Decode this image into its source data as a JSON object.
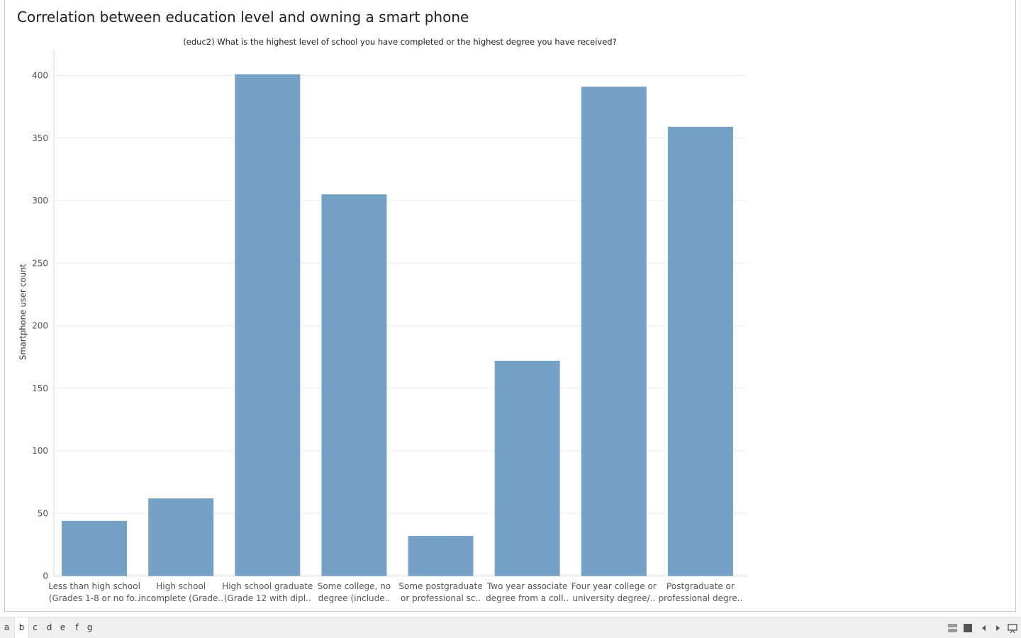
{
  "chart_data": {
    "type": "bar",
    "title": "Correlation between education level and owning a smart phone",
    "subtitle": "(educ2) What is the highest level of school you have completed or the highest degree you have received?",
    "xlabel": "",
    "ylabel": "Smartphone user count",
    "ylim": [
      0,
      400
    ],
    "yticks": [
      0,
      50,
      100,
      150,
      200,
      250,
      300,
      350,
      400
    ],
    "grid": true,
    "bar_color": "#75a1c7",
    "categories": [
      [
        "Less than high school",
        "(Grades 1-8 or no fo.."
      ],
      [
        "High school",
        "incomplete (Grade.."
      ],
      [
        "High school graduate",
        "(Grade 12 with dipl.."
      ],
      [
        "Some college, no",
        "degree (include.."
      ],
      [
        "Some postgraduate",
        "or professional sc.."
      ],
      [
        "Two year associate",
        "degree from a coll.."
      ],
      [
        "Four year college or",
        "university degree/.."
      ],
      [
        "Postgraduate or",
        "professional degre.."
      ]
    ],
    "values": [
      44,
      62,
      401,
      305,
      32,
      172,
      391,
      359
    ]
  },
  "tabs": [
    "a",
    "b",
    "c",
    "d",
    "e",
    "f",
    "g"
  ],
  "active_tab": "b",
  "controls": [
    "grid-view-icon",
    "stop-icon",
    "prev-icon",
    "next-icon",
    "presentation-icon"
  ]
}
